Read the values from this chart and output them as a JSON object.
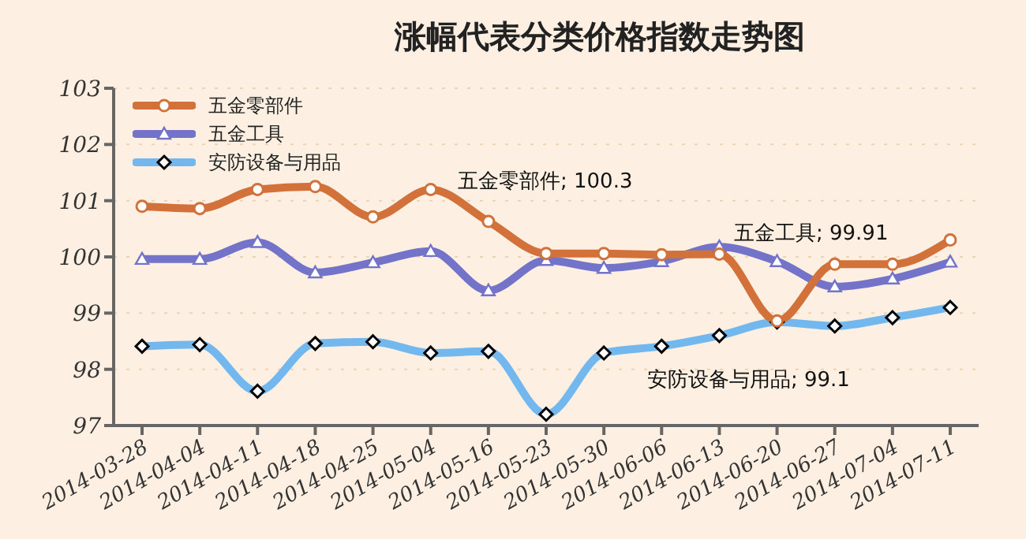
{
  "chart_data": {
    "type": "line",
    "title": "涨幅代表分类价格指数走势图",
    "categories": [
      "2014-03-28",
      "2014-04-04",
      "2014-04-11",
      "2014-04-18",
      "2014-04-25",
      "2014-05-04",
      "2014-05-16",
      "2014-05-23",
      "2014-05-30",
      "2014-06-06",
      "2014-06-13",
      "2014-06-20",
      "2014-06-27",
      "2014-07-04",
      "2014-07-11"
    ],
    "series": [
      {
        "name": "五金零部件",
        "color": "#d2713a",
        "marker": "circle",
        "values": [
          100.9,
          100.86,
          101.2,
          101.25,
          100.71,
          101.2,
          100.63,
          100.06,
          100.06,
          100.04,
          100.05,
          98.86,
          99.87,
          99.87,
          100.3
        ]
      },
      {
        "name": "五金工具",
        "color": "#7373c9",
        "marker": "triangle",
        "values": [
          99.96,
          99.96,
          100.26,
          99.72,
          99.9,
          100.1,
          99.4,
          99.94,
          99.8,
          99.92,
          100.18,
          99.92,
          99.47,
          99.61,
          99.91
        ]
      },
      {
        "name": "安防设备与用品",
        "color": "#72b8ef",
        "marker": "diamond",
        "values": [
          98.41,
          98.44,
          97.61,
          98.46,
          98.49,
          98.29,
          98.32,
          97.2,
          98.29,
          98.41,
          98.6,
          98.84,
          98.77,
          98.92,
          99.1
        ]
      }
    ],
    "annotations": [
      "五金零部件; 100.3",
      "五金工具; 99.91",
      "安防设备与用品; 99.1"
    ],
    "ylim": [
      97,
      103
    ],
    "yticks": [
      97,
      98,
      99,
      100,
      101,
      102,
      103
    ],
    "grid": "y",
    "legend": "top left"
  }
}
